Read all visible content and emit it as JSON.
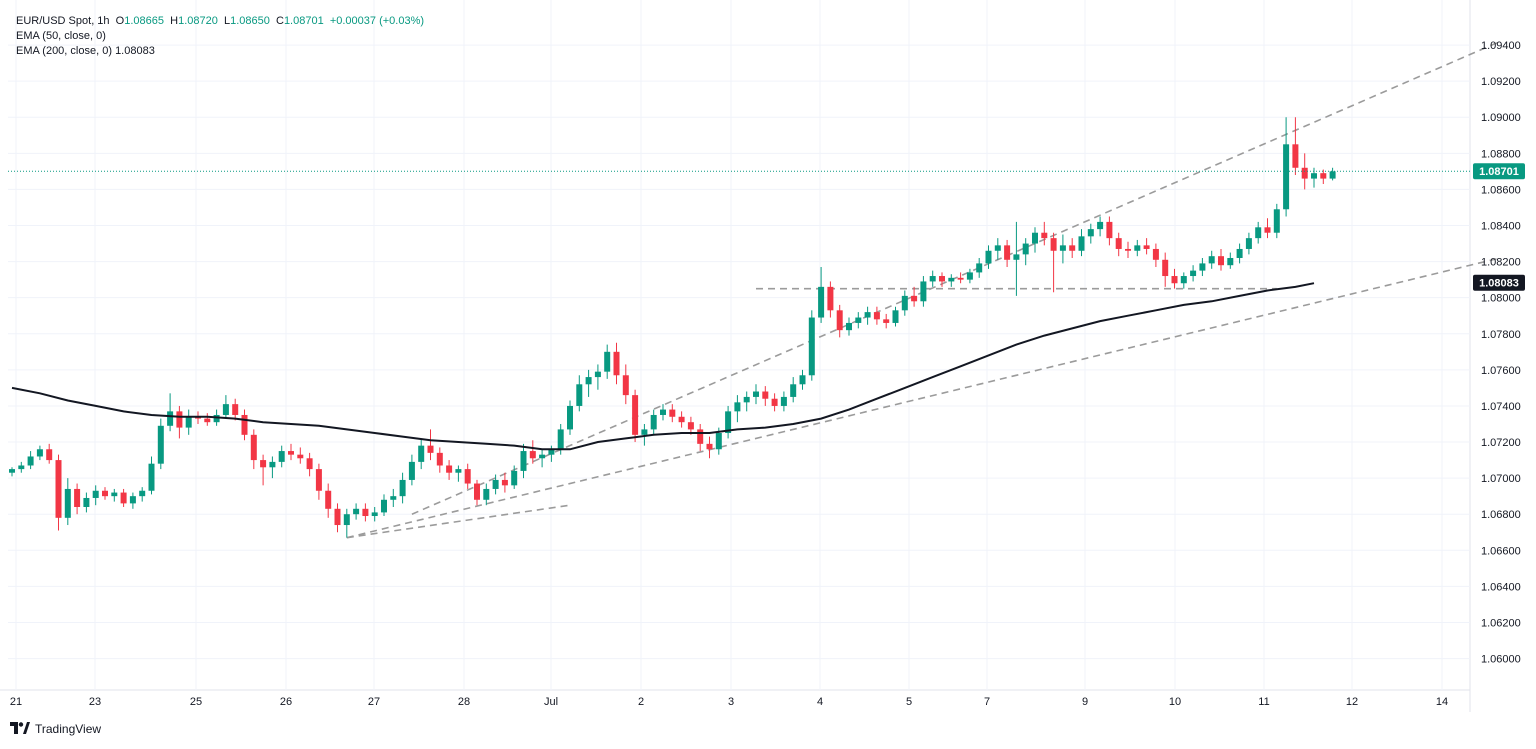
{
  "legend": {
    "symbol_line": {
      "symbol": "EUR/USD Spot, 1h",
      "open_label": "O",
      "open": "1.08665",
      "high_label": "H",
      "high": "1.08720",
      "low_label": "L",
      "low": "1.08650",
      "close_label": "C",
      "close": "1.08701",
      "change": "+0.00037 (+0.03%)"
    },
    "ema50": "EMA (50, close, 0)",
    "ema200": "EMA (200, close, 0)",
    "ema200_value": "1.08083"
  },
  "branding": {
    "name": "TradingView"
  },
  "colors": {
    "up": "#089981",
    "down": "#f23645",
    "ema": "#131722",
    "trend": "#9b9b9b",
    "grid": "#f0f3fa"
  },
  "chart_data": {
    "type": "candlestick",
    "title": "EUR/USD Spot, 1h",
    "x_ticks": [
      "21",
      "23",
      "25",
      "26",
      "27",
      "28",
      "Jul",
      "2",
      "3",
      "4",
      "5",
      "7",
      "9",
      "10",
      "11",
      "12",
      "14"
    ],
    "y_ticks": [
      "1.09400",
      "1.09200",
      "1.09000",
      "1.08800",
      "1.08600",
      "1.08400",
      "1.08200",
      "1.08000",
      "1.07800",
      "1.07600",
      "1.07400",
      "1.07200",
      "1.07000",
      "1.06800",
      "1.06600",
      "1.06400",
      "1.06200",
      "1.06000"
    ],
    "ylim": [
      1.0592,
      1.0955
    ],
    "price_labels": [
      {
        "value": "1.08701",
        "color": "#089981"
      },
      {
        "value": "1.08083",
        "color": "#131722"
      }
    ],
    "last_price": 1.08701,
    "ema200": [
      [
        0,
        1.075
      ],
      [
        3,
        1.0747
      ],
      [
        6,
        1.0743
      ],
      [
        9,
        1.074
      ],
      [
        12,
        1.0737
      ],
      [
        15,
        1.0735
      ],
      [
        18,
        1.0734
      ],
      [
        21,
        1.0734
      ],
      [
        24,
        1.0733
      ],
      [
        27,
        1.0731
      ],
      [
        30,
        1.073
      ],
      [
        33,
        1.0729
      ],
      [
        36,
        1.0727
      ],
      [
        39,
        1.0725
      ],
      [
        42,
        1.0723
      ],
      [
        45,
        1.0721
      ],
      [
        48,
        1.072
      ],
      [
        51,
        1.0719
      ],
      [
        54,
        1.0718
      ],
      [
        57,
        1.0716
      ],
      [
        60,
        1.0716
      ],
      [
        63,
        1.072
      ],
      [
        66,
        1.0722
      ],
      [
        69,
        1.0724
      ],
      [
        72,
        1.0725
      ],
      [
        75,
        1.0725
      ],
      [
        78,
        1.0727
      ],
      [
        81,
        1.0728
      ],
      [
        84,
        1.073
      ],
      [
        87,
        1.0733
      ],
      [
        90,
        1.0738
      ],
      [
        93,
        1.0744
      ],
      [
        96,
        1.075
      ],
      [
        99,
        1.0756
      ],
      [
        102,
        1.0762
      ],
      [
        105,
        1.0768
      ],
      [
        108,
        1.0774
      ],
      [
        111,
        1.0779
      ],
      [
        114,
        1.0783
      ],
      [
        117,
        1.0787
      ],
      [
        120,
        1.079
      ],
      [
        123,
        1.0793
      ],
      [
        126,
        1.0796
      ],
      [
        129,
        1.0798
      ],
      [
        132,
        1.0801
      ],
      [
        135,
        1.0804
      ],
      [
        138,
        1.0806
      ],
      [
        140,
        1.0808
      ]
    ],
    "trendlines": [
      {
        "from": [
          36,
          1.0667
        ],
        "to": [
          60,
          1.0685
        ]
      },
      {
        "from": [
          36,
          1.0667
        ],
        "to": [
          160,
          1.0822
        ]
      },
      {
        "from": [
          43,
          1.068
        ],
        "to": [
          160,
          1.0942
        ]
      },
      {
        "from": [
          80,
          1.0805
        ],
        "to": [
          136,
          1.0805
        ]
      }
    ],
    "candles": [
      [
        1.0703,
        1.0706,
        1.0701,
        1.0705
      ],
      [
        1.0705,
        1.0709,
        1.0703,
        1.0707
      ],
      [
        1.0707,
        1.0715,
        1.0705,
        1.0712
      ],
      [
        1.0712,
        1.0718,
        1.071,
        1.0716
      ],
      [
        1.0716,
        1.0719,
        1.0708,
        1.071
      ],
      [
        1.071,
        1.0713,
        1.0671,
        1.0678
      ],
      [
        1.0678,
        1.07,
        1.0674,
        1.0694
      ],
      [
        1.0694,
        1.0697,
        1.068,
        1.0684
      ],
      [
        1.0684,
        1.0692,
        1.0681,
        1.0689
      ],
      [
        1.0689,
        1.0696,
        1.0685,
        1.0693
      ],
      [
        1.0693,
        1.0695,
        1.0688,
        1.069
      ],
      [
        1.069,
        1.0694,
        1.0687,
        1.0692
      ],
      [
        1.0692,
        1.0694,
        1.0684,
        1.0686
      ],
      [
        1.0686,
        1.0692,
        1.0683,
        1.069
      ],
      [
        1.069,
        1.0695,
        1.0687,
        1.0693
      ],
      [
        1.0693,
        1.0712,
        1.0691,
        1.0708
      ],
      [
        1.0708,
        1.0733,
        1.0705,
        1.0729
      ],
      [
        1.0729,
        1.0747,
        1.0726,
        1.0737
      ],
      [
        1.0737,
        1.074,
        1.0722,
        1.0728
      ],
      [
        1.0728,
        1.0738,
        1.0724,
        1.0734
      ],
      [
        1.0734,
        1.0737,
        1.073,
        1.0733
      ],
      [
        1.0733,
        1.0736,
        1.0729,
        1.0731
      ],
      [
        1.0731,
        1.0738,
        1.0729,
        1.0735
      ],
      [
        1.0735,
        1.0746,
        1.0733,
        1.0741
      ],
      [
        1.0741,
        1.0744,
        1.0732,
        1.0735
      ],
      [
        1.0735,
        1.0738,
        1.0721,
        1.0724
      ],
      [
        1.0724,
        1.0727,
        1.0705,
        1.071
      ],
      [
        1.071,
        1.0713,
        1.0696,
        1.0706
      ],
      [
        1.0706,
        1.0712,
        1.07,
        1.0709
      ],
      [
        1.0709,
        1.0718,
        1.0706,
        1.0715
      ],
      [
        1.0715,
        1.0719,
        1.071,
        1.0713
      ],
      [
        1.0713,
        1.0717,
        1.0708,
        1.0711
      ],
      [
        1.0711,
        1.0714,
        1.0701,
        1.0705
      ],
      [
        1.0705,
        1.0708,
        1.0688,
        1.0693
      ],
      [
        1.0693,
        1.0697,
        1.0678,
        1.0683
      ],
      [
        1.0683,
        1.0686,
        1.067,
        1.0674
      ],
      [
        1.0674,
        1.0683,
        1.0667,
        1.068
      ],
      [
        1.068,
        1.0686,
        1.0677,
        1.0683
      ],
      [
        1.0683,
        1.0686,
        1.0676,
        1.0679
      ],
      [
        1.0679,
        1.0684,
        1.0676,
        1.0681
      ],
      [
        1.0681,
        1.0691,
        1.0679,
        1.0688
      ],
      [
        1.0688,
        1.0694,
        1.0684,
        1.069
      ],
      [
        1.069,
        1.0703,
        1.0686,
        1.0699
      ],
      [
        1.0699,
        1.0713,
        1.0696,
        1.0709
      ],
      [
        1.0709,
        1.0722,
        1.0705,
        1.0718
      ],
      [
        1.0718,
        1.0727,
        1.071,
        1.0714
      ],
      [
        1.0714,
        1.0717,
        1.0703,
        1.0707
      ],
      [
        1.0707,
        1.071,
        1.0699,
        1.0703
      ],
      [
        1.0703,
        1.0707,
        1.0698,
        1.0705
      ],
      [
        1.0705,
        1.0708,
        1.0694,
        1.0697
      ],
      [
        1.0697,
        1.0699,
        1.0685,
        1.0688
      ],
      [
        1.0688,
        1.0697,
        1.0685,
        1.0694
      ],
      [
        1.0694,
        1.0702,
        1.0691,
        1.0699
      ],
      [
        1.0699,
        1.0703,
        1.0692,
        1.0696
      ],
      [
        1.0696,
        1.0707,
        1.0694,
        1.0704
      ],
      [
        1.0704,
        1.0719,
        1.07,
        1.0715
      ],
      [
        1.0715,
        1.0721,
        1.0708,
        1.0711
      ],
      [
        1.0711,
        1.0716,
        1.0706,
        1.0713
      ],
      [
        1.0713,
        1.0718,
        1.0709,
        1.0716
      ],
      [
        1.0716,
        1.073,
        1.0713,
        1.0727
      ],
      [
        1.0727,
        1.0743,
        1.0724,
        1.074
      ],
      [
        1.074,
        1.0757,
        1.0737,
        1.0752
      ],
      [
        1.0752,
        1.076,
        1.0745,
        1.0756
      ],
      [
        1.0756,
        1.0763,
        1.0749,
        1.0759
      ],
      [
        1.0759,
        1.0774,
        1.0755,
        1.077
      ],
      [
        1.077,
        1.0775,
        1.0752,
        1.0757
      ],
      [
        1.0757,
        1.0763,
        1.0741,
        1.0746
      ],
      [
        1.0746,
        1.0749,
        1.072,
        1.0724
      ],
      [
        1.0724,
        1.073,
        1.0718,
        1.0727
      ],
      [
        1.0727,
        1.0738,
        1.0724,
        1.0735
      ],
      [
        1.0735,
        1.0741,
        1.0732,
        1.0738
      ],
      [
        1.0738,
        1.0741,
        1.0731,
        1.0734
      ],
      [
        1.0734,
        1.0737,
        1.0728,
        1.0731
      ],
      [
        1.0731,
        1.0734,
        1.0724,
        1.0727
      ],
      [
        1.0727,
        1.073,
        1.0715,
        1.0719
      ],
      [
        1.0719,
        1.0723,
        1.0711,
        1.0716
      ],
      [
        1.0716,
        1.0728,
        1.0713,
        1.0725
      ],
      [
        1.0725,
        1.074,
        1.0722,
        1.0737
      ],
      [
        1.0737,
        1.0746,
        1.0731,
        1.0742
      ],
      [
        1.0742,
        1.0748,
        1.0737,
        1.0745
      ],
      [
        1.0745,
        1.0752,
        1.0741,
        1.0748
      ],
      [
        1.0748,
        1.0751,
        1.074,
        1.0744
      ],
      [
        1.0744,
        1.0747,
        1.0737,
        1.074
      ],
      [
        1.074,
        1.0748,
        1.0737,
        1.0745
      ],
      [
        1.0745,
        1.0756,
        1.0742,
        1.0752
      ],
      [
        1.0752,
        1.076,
        1.0749,
        1.0757
      ],
      [
        1.0757,
        1.0793,
        1.0754,
        1.0789
      ],
      [
        1.0789,
        1.0817,
        1.0786,
        1.0806
      ],
      [
        1.0806,
        1.0809,
        1.0789,
        1.0793
      ],
      [
        1.0793,
        1.0796,
        1.0778,
        1.0782
      ],
      [
        1.0782,
        1.0789,
        1.0779,
        1.0786
      ],
      [
        1.0786,
        1.0792,
        1.0783,
        1.0789
      ],
      [
        1.0789,
        1.0795,
        1.0785,
        1.0792
      ],
      [
        1.0792,
        1.0795,
        1.0785,
        1.0788
      ],
      [
        1.0788,
        1.0791,
        1.0783,
        1.0786
      ],
      [
        1.0786,
        1.0795,
        1.0784,
        1.0793
      ],
      [
        1.0793,
        1.0804,
        1.079,
        1.0801
      ],
      [
        1.0801,
        1.0806,
        1.0795,
        1.0798
      ],
      [
        1.0798,
        1.0812,
        1.0795,
        1.0809
      ],
      [
        1.0809,
        1.0815,
        1.0806,
        1.0812
      ],
      [
        1.0812,
        1.0814,
        1.0806,
        1.0809
      ],
      [
        1.0809,
        1.0813,
        1.0806,
        1.0811
      ],
      [
        1.0811,
        1.0814,
        1.0808,
        1.081
      ],
      [
        1.081,
        1.0816,
        1.0808,
        1.0814
      ],
      [
        1.0814,
        1.0822,
        1.0811,
        1.0819
      ],
      [
        1.0819,
        1.0829,
        1.0816,
        1.0826
      ],
      [
        1.0826,
        1.0833,
        1.0821,
        1.0829
      ],
      [
        1.0829,
        1.0832,
        1.0817,
        1.0821
      ],
      [
        1.0821,
        1.0842,
        1.0801,
        1.0824
      ],
      [
        1.0824,
        1.0833,
        1.0818,
        1.083
      ],
      [
        1.083,
        1.0839,
        1.0825,
        1.0836
      ],
      [
        1.0836,
        1.0842,
        1.0829,
        1.0833
      ],
      [
        1.0833,
        1.0836,
        1.0803,
        1.0826
      ],
      [
        1.0826,
        1.0835,
        1.0819,
        1.0829
      ],
      [
        1.0829,
        1.0833,
        1.0822,
        1.0826
      ],
      [
        1.0826,
        1.0838,
        1.0823,
        1.0834
      ],
      [
        1.0834,
        1.0841,
        1.083,
        1.0838
      ],
      [
        1.0838,
        1.0845,
        1.0834,
        1.0842
      ],
      [
        1.0842,
        1.0845,
        1.0829,
        1.0833
      ],
      [
        1.0833,
        1.0836,
        1.0823,
        1.0827
      ],
      [
        1.0827,
        1.0831,
        1.0822,
        1.0826
      ],
      [
        1.0826,
        1.0832,
        1.0823,
        1.0829
      ],
      [
        1.0829,
        1.0833,
        1.0824,
        1.0827
      ],
      [
        1.0827,
        1.083,
        1.0817,
        1.0821
      ],
      [
        1.0821,
        1.0825,
        1.0806,
        1.0812
      ],
      [
        1.0812,
        1.0816,
        1.0805,
        1.0808
      ],
      [
        1.0808,
        1.0814,
        1.0805,
        1.0812
      ],
      [
        1.0812,
        1.0818,
        1.0809,
        1.0815
      ],
      [
        1.0815,
        1.0822,
        1.0812,
        1.0819
      ],
      [
        1.0819,
        1.0826,
        1.0816,
        1.0823
      ],
      [
        1.0823,
        1.0827,
        1.0815,
        1.0818
      ],
      [
        1.0818,
        1.0825,
        1.0816,
        1.0822
      ],
      [
        1.0822,
        1.083,
        1.0819,
        1.0827
      ],
      [
        1.0827,
        1.0836,
        1.0824,
        1.0833
      ],
      [
        1.0833,
        1.0842,
        1.083,
        1.0839
      ],
      [
        1.0839,
        1.0844,
        1.0833,
        1.0836
      ],
      [
        1.0836,
        1.0852,
        1.0833,
        1.0849
      ],
      [
        1.0849,
        1.09,
        1.0845,
        1.0885
      ],
      [
        1.0885,
        1.09,
        1.0868,
        1.0872
      ],
      [
        1.0872,
        1.088,
        1.086,
        1.0866
      ],
      [
        1.0866,
        1.0872,
        1.0861,
        1.0869
      ],
      [
        1.0869,
        1.0871,
        1.0863,
        1.0866
      ],
      [
        1.0866,
        1.0872,
        1.0865,
        1.087
      ]
    ]
  }
}
